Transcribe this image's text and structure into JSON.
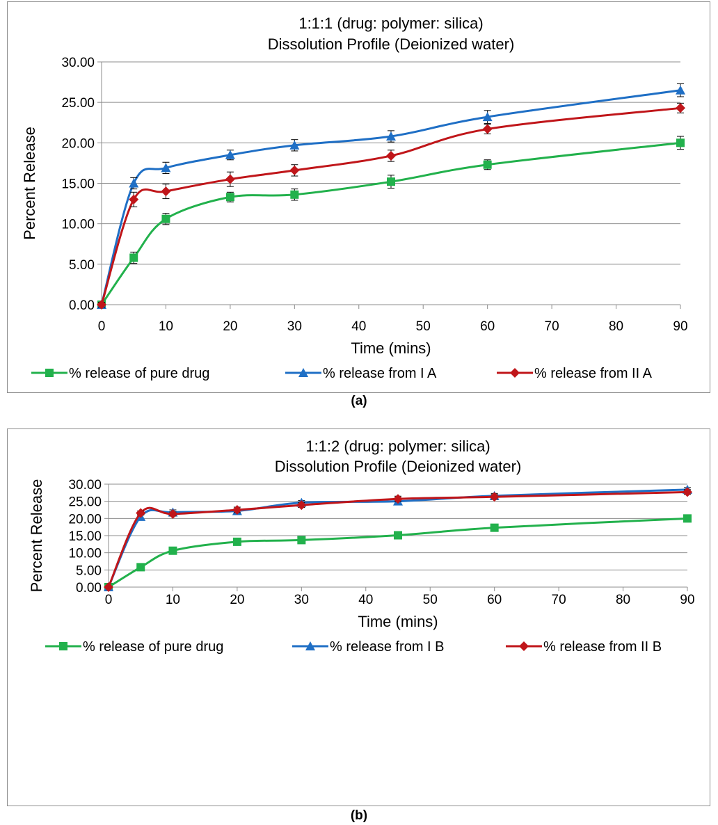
{
  "chart_data": [
    {
      "type": "line",
      "title": "1:1:1 (drug: polymer: silica)",
      "subtitle": "Dissolution Profile (Deionized water)",
      "xlabel": "Time (mins)",
      "ylabel": "Percent Release",
      "x_ticks": [
        "0",
        "10",
        "20",
        "30",
        "40",
        "50",
        "60",
        "70",
        "80",
        "90"
      ],
      "y_ticks": [
        "0.00",
        "5.00",
        "10.00",
        "15.00",
        "20.00",
        "25.00",
        "30.00"
      ],
      "xlim": [
        0,
        90
      ],
      "ylim": [
        0,
        30
      ],
      "grid": "horizontal",
      "legend_position": "bottom",
      "caption": "(a)",
      "x": [
        0,
        5,
        10,
        20,
        30,
        45,
        60,
        90
      ],
      "series": [
        {
          "name": "% release of pure drug",
          "marker": "square",
          "color": "#22b14c",
          "values": [
            0,
            5.8,
            10.6,
            13.3,
            13.6,
            15.2,
            17.3,
            20.0
          ],
          "errors": [
            0.3,
            0.7,
            0.7,
            0.6,
            0.7,
            0.8,
            0.6,
            0.8
          ]
        },
        {
          "name": "% release from I A",
          "marker": "triangle",
          "color": "#1f6fc5",
          "values": [
            0,
            15.0,
            16.9,
            18.5,
            19.7,
            20.8,
            23.2,
            26.5
          ],
          "errors": [
            0.3,
            0.7,
            0.7,
            0.6,
            0.7,
            0.7,
            0.8,
            0.8
          ]
        },
        {
          "name": "% release from II A",
          "marker": "diamond",
          "color": "#c0161a",
          "values": [
            0,
            13.0,
            14.0,
            15.5,
            16.6,
            18.4,
            21.7,
            24.3
          ],
          "errors": [
            0.3,
            0.9,
            0.9,
            0.9,
            0.7,
            0.7,
            0.6,
            0.6
          ]
        }
      ]
    },
    {
      "type": "line",
      "title": "1:1:2 (drug: polymer: silica)",
      "subtitle": "Dissolution Profile (Deionized water)",
      "xlabel": "Time (mins)",
      "ylabel": "Percent Release",
      "x_ticks": [
        "0",
        "10",
        "20",
        "30",
        "40",
        "50",
        "60",
        "70",
        "80",
        "90"
      ],
      "y_ticks": [
        "0.00",
        "5.00",
        "10.00",
        "15.00",
        "20.00",
        "25.00",
        "30.00"
      ],
      "xlim": [
        0,
        90
      ],
      "ylim": [
        0,
        30
      ],
      "grid": "horizontal",
      "legend_position": "bottom",
      "caption": "(b)",
      "x": [
        0,
        5,
        10,
        20,
        30,
        45,
        60,
        90
      ],
      "series": [
        {
          "name": "% release of pure drug",
          "marker": "square",
          "color": "#22b14c",
          "values": [
            0,
            5.8,
            10.6,
            13.2,
            13.7,
            15.1,
            17.3,
            20.0
          ],
          "errors": [
            0.3,
            0.8,
            0.6,
            0.6,
            0.7,
            0.8,
            0.6,
            0.8
          ]
        },
        {
          "name": "% release from I B",
          "marker": "triangle",
          "color": "#1f6fc5",
          "values": [
            0,
            20.5,
            21.8,
            22.2,
            24.6,
            25.0,
            26.6,
            28.4
          ],
          "errors": [
            0.3,
            0.6,
            0.7,
            0.6,
            0.6,
            0.6,
            0.7,
            0.6
          ]
        },
        {
          "name": "% release from II B",
          "marker": "diamond",
          "color": "#c0161a",
          "values": [
            0,
            21.6,
            21.3,
            22.5,
            23.9,
            25.7,
            26.3,
            27.7
          ],
          "errors": [
            0.3,
            0.6,
            0.6,
            0.8,
            0.7,
            0.8,
            0.7,
            0.7
          ]
        }
      ]
    }
  ]
}
